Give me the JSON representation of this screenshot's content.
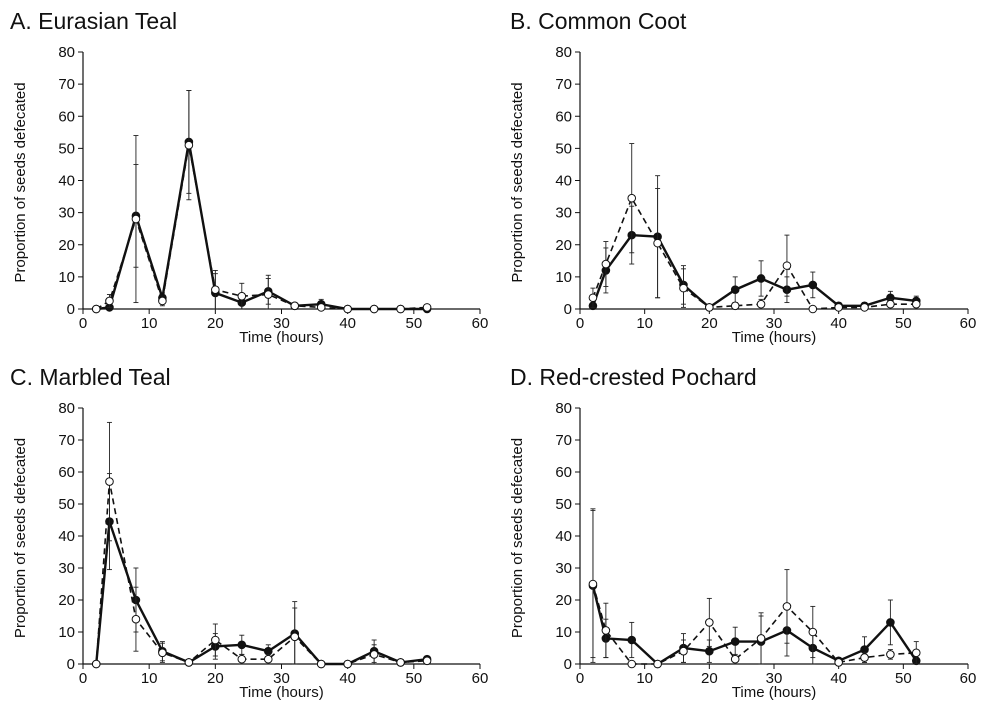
{
  "chart_data": [
    {
      "type": "line",
      "title": "A. Eurasian Teal",
      "xlabel": "Time (hours)",
      "ylabel": "Proportion of seeds defecated",
      "xlim": [
        0,
        60
      ],
      "ylim": [
        0,
        80
      ],
      "xticks": [
        0,
        10,
        20,
        30,
        40,
        50,
        60
      ],
      "yticks": [
        0,
        10,
        20,
        30,
        40,
        50,
        60,
        70,
        80
      ],
      "grid": false,
      "x": [
        2,
        4,
        8,
        12,
        16,
        20,
        24,
        28,
        32,
        36,
        40,
        44,
        48,
        52
      ],
      "series": [
        {
          "style": "solid",
          "marker": "filled-circle",
          "values": [
            0,
            0.5,
            29,
            3.5,
            52,
            5,
            2,
            5.5,
            1,
            1.5,
            0,
            0,
            0,
            0
          ],
          "errors": [
            0,
            0.5,
            16,
            1.5,
            16,
            6,
            2,
            4,
            0.5,
            1.5,
            0,
            0,
            0,
            0
          ]
        },
        {
          "style": "dashed",
          "marker": "open-circle",
          "values": [
            0,
            2.5,
            28,
            2.5,
            51,
            6,
            4,
            4.5,
            1,
            0.5,
            0,
            0,
            0,
            0.5
          ],
          "errors": [
            0,
            2,
            26,
            1.5,
            17,
            6,
            4,
            6,
            0.5,
            0.5,
            0,
            0,
            0,
            0.5
          ]
        }
      ]
    },
    {
      "type": "line",
      "title": "B. Common Coot",
      "xlabel": "Time (hours)",
      "ylabel": "Proportion of seeds defecated",
      "xlim": [
        0,
        60
      ],
      "ylim": [
        0,
        80
      ],
      "xticks": [
        0,
        10,
        20,
        30,
        40,
        50,
        60
      ],
      "yticks": [
        0,
        10,
        20,
        30,
        40,
        50,
        60,
        70,
        80
      ],
      "grid": false,
      "x": [
        2,
        4,
        8,
        12,
        16,
        20,
        24,
        28,
        32,
        36,
        40,
        44,
        48,
        52
      ],
      "series": [
        {
          "style": "solid",
          "marker": "filled-circle",
          "values": [
            1,
            12,
            23,
            22.5,
            7.5,
            0.5,
            6,
            9.5,
            6,
            7.5,
            1,
            1,
            3.5,
            2.5
          ],
          "errors": [
            1,
            7,
            9,
            19,
            6,
            0.5,
            4,
            5.5,
            4,
            4,
            1,
            1,
            2,
            1.5
          ]
        },
        {
          "style": "dashed",
          "marker": "open-circle",
          "values": [
            3.5,
            14,
            34.5,
            20.5,
            6.5,
            0.5,
            1,
            1.5,
            13.5,
            0,
            0.5,
            0.5,
            1.5,
            1.5
          ],
          "errors": [
            3,
            7,
            17,
            17,
            6,
            0.5,
            1,
            1.5,
            9.5,
            0,
            0.5,
            0.5,
            1.5,
            1
          ]
        }
      ]
    },
    {
      "type": "line",
      "title": "C. Marbled Teal",
      "xlabel": "Time (hours)",
      "ylabel": "Proportion of seeds defecated",
      "xlim": [
        0,
        60
      ],
      "ylim": [
        0,
        80
      ],
      "xticks": [
        0,
        10,
        20,
        30,
        40,
        50,
        60
      ],
      "yticks": [
        0,
        10,
        20,
        30,
        40,
        50,
        60,
        70,
        80
      ],
      "grid": false,
      "x": [
        2,
        4,
        8,
        12,
        16,
        20,
        24,
        28,
        32,
        36,
        40,
        44,
        48,
        52
      ],
      "series": [
        {
          "style": "solid",
          "marker": "filled-circle",
          "values": [
            0,
            44.5,
            20,
            4,
            0.5,
            5.5,
            6,
            4,
            9.5,
            0,
            0,
            4,
            0.5,
            1.5
          ],
          "errors": [
            0,
            15,
            10,
            3,
            0.5,
            4,
            3,
            2,
            10,
            0,
            0,
            3.5,
            0.5,
            1
          ]
        },
        {
          "style": "dashed",
          "marker": "open-circle",
          "values": [
            0,
            57,
            14,
            3.5,
            0.5,
            7.5,
            1.5,
            1.5,
            8.5,
            0,
            0,
            3,
            0.5,
            1
          ],
          "errors": [
            0,
            18.5,
            10,
            3,
            0.5,
            5,
            1.5,
            1.5,
            9,
            0,
            0,
            3,
            0.5,
            1
          ]
        }
      ]
    },
    {
      "type": "line",
      "title": "D. Red-crested Pochard",
      "xlabel": "Time (hours)",
      "ylabel": "Proportion of seeds defecated",
      "xlim": [
        0,
        60
      ],
      "ylim": [
        0,
        80
      ],
      "xticks": [
        0,
        10,
        20,
        30,
        40,
        50,
        60
      ],
      "yticks": [
        0,
        10,
        20,
        30,
        40,
        50,
        60,
        70,
        80
      ],
      "grid": false,
      "x": [
        2,
        4,
        8,
        12,
        16,
        20,
        24,
        28,
        32,
        36,
        40,
        44,
        48,
        52
      ],
      "series": [
        {
          "style": "solid",
          "marker": "filled-circle",
          "values": [
            24.5,
            8,
            7.5,
            0,
            5,
            4,
            7,
            7,
            10.5,
            5,
            1,
            4.5,
            13,
            1
          ],
          "errors": [
            24,
            6,
            5.5,
            0,
            4.5,
            3.5,
            4.5,
            8,
            8,
            5,
            1,
            4,
            7,
            1
          ]
        },
        {
          "style": "dashed",
          "marker": "open-circle",
          "values": [
            25,
            10.5,
            0,
            0,
            4,
            13,
            1.5,
            8,
            18,
            10,
            0.5,
            2,
            3,
            3.5
          ],
          "errors": [
            23,
            8.5,
            0,
            0,
            3.5,
            7.5,
            1.5,
            8,
            11.5,
            8,
            0.5,
            1.5,
            1.5,
            3.5
          ]
        }
      ]
    }
  ]
}
